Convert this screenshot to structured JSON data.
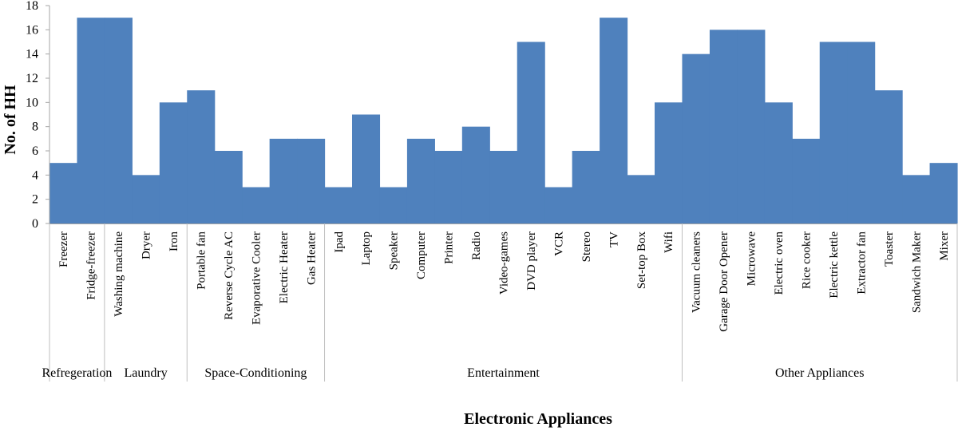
{
  "chart_data": {
    "type": "bar",
    "title": "",
    "xlabel": "Electronic Appliances",
    "ylabel": "No. of HH",
    "ylim": [
      0,
      18
    ],
    "yticks": [
      0,
      2,
      4,
      6,
      8,
      10,
      12,
      14,
      16,
      18
    ],
    "grid": false,
    "legend": "none",
    "bar_color": "#4F81BD",
    "categories": [
      "Freezer",
      "Fridge-freezer",
      "Washing machine",
      "Dryer",
      "Iron",
      "Portable fan",
      "Reverse Cycle AC",
      "Evaporative Cooler",
      "Electric Heater",
      "Gas Heater",
      "Ipad",
      "Laptop",
      "Speaker",
      "Computer",
      "Printer",
      "Radio",
      "Video-games",
      "DVD player",
      "VCR",
      "Stereo",
      "TV",
      "Set-top Box",
      "Wifi",
      "Vacuum cleaners",
      "Garage Door Opener",
      "Microwave",
      "Electric oven",
      "Rice cooker",
      "Electric kettle",
      "Extractor fan",
      "Toaster",
      "Sandwich Maker",
      "Mixer"
    ],
    "values": [
      5,
      17,
      17,
      4,
      10,
      11,
      6,
      3,
      7,
      7,
      3,
      9,
      3,
      7,
      6,
      8,
      6,
      15,
      3,
      6,
      17,
      4,
      10,
      14,
      16,
      16,
      10,
      7,
      15,
      15,
      11,
      4,
      5
    ],
    "groups": [
      {
        "name": "Refregeration",
        "start": 0,
        "end": 1
      },
      {
        "name": "Laundry",
        "start": 2,
        "end": 4
      },
      {
        "name": "Space-Conditioning",
        "start": 5,
        "end": 9
      },
      {
        "name": "Entertainment",
        "start": 10,
        "end": 22
      },
      {
        "name": "Other Appliances",
        "start": 23,
        "end": 32
      }
    ]
  }
}
